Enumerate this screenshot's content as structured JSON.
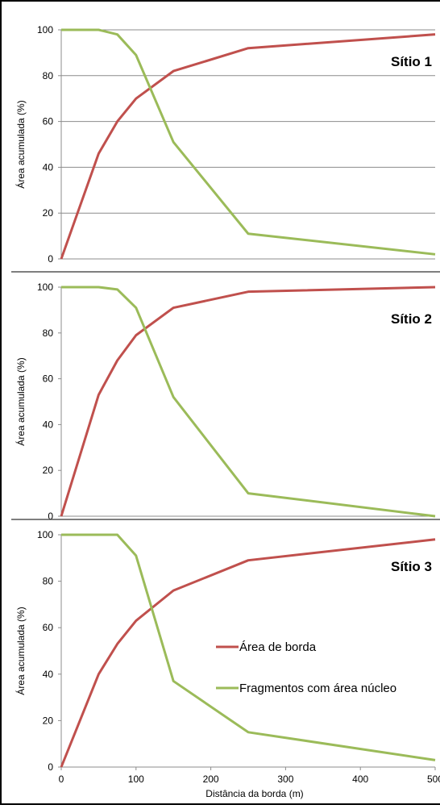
{
  "chart_data": [
    {
      "type": "line",
      "label": "Sítio 1",
      "ylabel": "Área acumulada (%)",
      "xlabel": "",
      "ylim": [
        0,
        100
      ],
      "yticks": [
        0,
        20,
        40,
        60,
        80,
        100
      ],
      "xlim": [
        0,
        500
      ],
      "grid": true,
      "series": [
        {
          "name": "Área de borda",
          "color": "#c0504d",
          "x": [
            0,
            50,
            75,
            100,
            150,
            250,
            500
          ],
          "y": [
            0,
            46,
            60,
            70,
            82,
            92,
            98
          ]
        },
        {
          "name": "Fragmentos com área núcleo",
          "color": "#9bbb59",
          "x": [
            0,
            50,
            75,
            100,
            150,
            250,
            500
          ],
          "y": [
            100,
            100,
            98,
            89,
            51,
            11,
            2
          ]
        }
      ]
    },
    {
      "type": "line",
      "label": "Sítio 2",
      "ylabel": "Área acumulada (%)",
      "xlabel": "",
      "ylim": [
        0,
        100
      ],
      "yticks": [
        0,
        20,
        40,
        60,
        80,
        100
      ],
      "xlim": [
        0,
        500
      ],
      "grid": false,
      "series": [
        {
          "name": "Área de borda",
          "color": "#c0504d",
          "x": [
            0,
            50,
            75,
            100,
            150,
            250,
            500
          ],
          "y": [
            0,
            53,
            68,
            79,
            91,
            98,
            100
          ]
        },
        {
          "name": "Fragmentos com área núcleo",
          "color": "#9bbb59",
          "x": [
            0,
            50,
            75,
            100,
            150,
            250,
            500
          ],
          "y": [
            100,
            100,
            99,
            91,
            52,
            10,
            0
          ]
        }
      ]
    },
    {
      "type": "line",
      "label": "Sítio 3",
      "ylabel": "Área acumulada (%)",
      "xlabel": "Distância da borda (m)",
      "ylim": [
        0,
        100
      ],
      "yticks": [
        0,
        20,
        40,
        60,
        80,
        100
      ],
      "xlim": [
        0,
        500
      ],
      "xticks": [
        0,
        100,
        200,
        300,
        400,
        500
      ],
      "grid": false,
      "series": [
        {
          "name": "Área de borda",
          "color": "#c0504d",
          "x": [
            0,
            50,
            75,
            100,
            150,
            250,
            500
          ],
          "y": [
            0,
            40,
            53,
            63,
            76,
            89,
            98
          ]
        },
        {
          "name": "Fragmentos com área núcleo",
          "color": "#9bbb59",
          "x": [
            0,
            50,
            75,
            100,
            150,
            250,
            500
          ],
          "y": [
            100,
            100,
            100,
            91,
            37,
            15,
            3
          ]
        }
      ]
    }
  ],
  "legend": {
    "placement": "inside bottom-right of panel 3",
    "items": [
      {
        "label": "Área de borda",
        "color": "#c0504d"
      },
      {
        "label": "Fragmentos com área núcleo",
        "color": "#9bbb59"
      }
    ]
  }
}
